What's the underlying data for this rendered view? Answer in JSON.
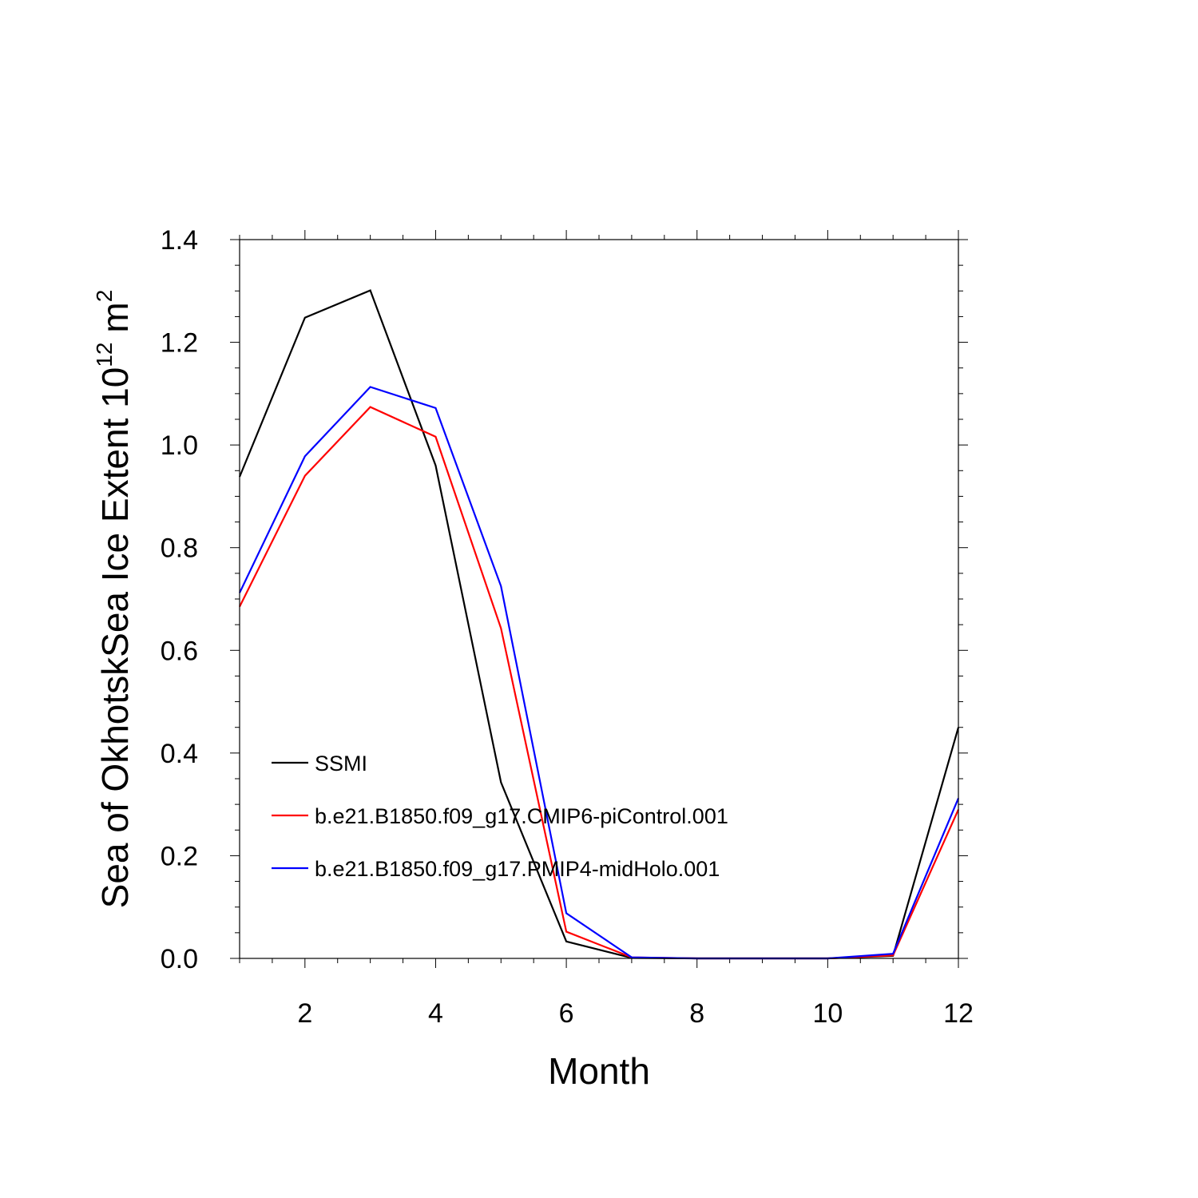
{
  "chart_data": {
    "type": "line",
    "title": "",
    "xlabel": "Month",
    "ylabel_main": "Sea of OkhotskSea Ice Extent 10",
    "ylabel_exponent": "12",
    "ylabel_unit": "m",
    "ylabel_unit_exponent": "2",
    "xlim": [
      1,
      12
    ],
    "ylim": [
      0.0,
      1.4
    ],
    "x_ticks": [
      2,
      4,
      6,
      8,
      10,
      12
    ],
    "x_tick_labels": [
      "2",
      "4",
      "6",
      "8",
      "10",
      "12"
    ],
    "y_ticks": [
      0.0,
      0.2,
      0.4,
      0.6,
      0.8,
      1.0,
      1.2,
      1.4
    ],
    "y_tick_labels": [
      "0.0",
      "0.2",
      "0.4",
      "0.6",
      "0.8",
      "1.0",
      "1.2",
      "1.4"
    ],
    "x_minor_step": 0.5,
    "y_minor_step": 0.05,
    "grid": false,
    "legend_position": "lower-left",
    "x": [
      1,
      2,
      3,
      4,
      5,
      6,
      7,
      8,
      9,
      10,
      11,
      12
    ],
    "series": [
      {
        "name": "SSMI",
        "color": "#000000",
        "values": [
          0.938,
          1.248,
          1.301,
          0.96,
          0.343,
          0.033,
          0.001,
          0.0,
          0.0,
          0.0,
          0.005,
          0.45
        ]
      },
      {
        "name": "b.e21.B1850.f09_g17.CMIP6-piControl.001",
        "color": "#ff0000",
        "values": [
          0.685,
          0.94,
          1.074,
          1.016,
          0.643,
          0.052,
          0.002,
          0.0,
          0.0,
          0.0,
          0.006,
          0.29
        ]
      },
      {
        "name": "b.e21.B1850.f09_g17.PMIP4-midHolo.001",
        "color": "#0000ff",
        "values": [
          0.712,
          0.978,
          1.113,
          1.072,
          0.725,
          0.088,
          0.002,
          0.0,
          0.0,
          0.0,
          0.009,
          0.312
        ]
      }
    ]
  }
}
